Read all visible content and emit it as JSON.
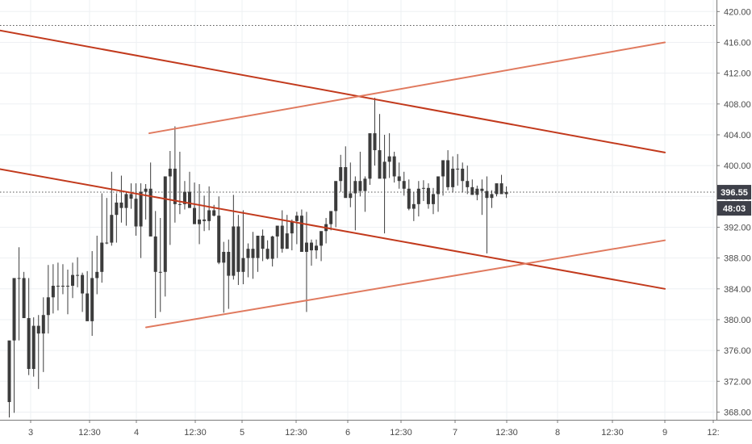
{
  "chart_data": {
    "type": "candlestick",
    "ylim": [
      367.0,
      421.5
    ],
    "grid": true,
    "y_ticks": [
      368,
      372,
      376,
      380,
      384,
      388,
      392,
      396,
      400,
      404,
      408,
      412,
      416,
      420
    ],
    "y_tick_labels": [
      "368.00",
      "372.00",
      "376.00",
      "380.00",
      "384.00",
      "388.00",
      "392.00",
      "396.00",
      "400.00",
      "404.00",
      "408.00",
      "412.00",
      "416.00",
      "420.00"
    ],
    "x_labels": [
      "3",
      "12:30",
      "4",
      "12:30",
      "5",
      "12:30",
      "6",
      "12:30",
      "7",
      "12:30",
      "8",
      "12:30",
      "9",
      "12:"
    ],
    "candles": {
      "open": [
        369.3,
        377.3,
        385.4,
        385.4,
        380.2,
        373.6,
        379.2,
        378.2,
        380.6,
        382.9,
        384.4,
        384.4,
        384.4,
        384.4,
        385.8,
        385.8,
        383.4,
        379.8,
        385.4,
        386.2,
        390.0,
        390.0,
        393.6,
        395.2,
        394.5,
        396.3,
        395.7,
        392.1,
        396.6,
        397.0,
        390.8,
        386.2,
        386.2,
        398.6,
        399.6,
        395.0,
        395.0,
        396.6,
        394.5,
        392.4,
        393.0,
        392.8,
        394.2,
        393.5,
        387.4,
        388.8,
        385.7,
        392.1,
        386.2,
        388.0,
        389.2,
        388.0,
        390.9,
        389.2,
        387.9,
        390.8,
        392.2,
        389.2,
        391.2,
        392.8,
        393.5,
        388.8,
        390.0,
        389.0,
        389.6,
        391.5,
        392.4,
        394.1,
        398.0,
        399.8,
        395.8,
        396.4,
        398.0,
        396.7,
        398.3,
        404.2,
        402.0,
        398.3,
        400.5,
        401.2,
        398.6,
        398.0,
        397.0,
        394.4,
        395.0,
        397.0,
        397.1,
        395.0,
        396.3,
        398.6,
        400.7,
        397.2,
        399.6,
        399.6,
        398.0,
        397.2,
        396.2,
        397.0,
        396.7,
        395.8,
        396.3,
        397.7,
        396.3
      ],
      "high": [
        372.3,
        383.1,
        389.4,
        386.2,
        385.4,
        380.3,
        380.6,
        382.9,
        387.1,
        387.2,
        387.4,
        387.2,
        386.5,
        387.4,
        388.1,
        386.1,
        386.3,
        388.9,
        390.9,
        396.4,
        395.8,
        399.2,
        396.4,
        398.7,
        396.6,
        397.7,
        397.7,
        397.7,
        397.6,
        400.4,
        394.1,
        393.2,
        394.9,
        401.9,
        405.1,
        401.8,
        398.0,
        399.2,
        397.8,
        397.6,
        396.1,
        397.3,
        394.9,
        396.0,
        390.1,
        390.4,
        396.2,
        393.6,
        394.2,
        389.9,
        391.4,
        390.1,
        391.7,
        390.3,
        390.9,
        391.6,
        394.2,
        393.6,
        393.0,
        394.0,
        394.3,
        394.0,
        390.4,
        390.4,
        390.9,
        393.2,
        393.6,
        397.1,
        401.4,
        402.5,
        400.4,
        398.6,
        401.8,
        398.6,
        403.7,
        408.8,
        406.7,
        404.0,
        404.2,
        401.8,
        400.4,
        399.2,
        398.2,
        396.6,
        398.0,
        398.1,
        397.7,
        397.1,
        397.9,
        400.4,
        402.0,
        401.2,
        401.5,
        400.4,
        400.0,
        398.2,
        397.4,
        398.2,
        398.6,
        396.8,
        397.4,
        398.8,
        397.3
      ],
      "low": [
        367.3,
        367.9,
        377.3,
        381.8,
        372.8,
        372.6,
        371.0,
        373.2,
        378.2,
        380.8,
        381.2,
        383.3,
        380.7,
        382.8,
        384.2,
        381.0,
        380.4,
        377.9,
        383.3,
        384.8,
        389.8,
        389.6,
        390.0,
        392.6,
        392.2,
        394.4,
        390.9,
        388.0,
        393.0,
        392.5,
        380.2,
        381.0,
        383.0,
        389.7,
        392.6,
        393.7,
        394.3,
        394.7,
        392.5,
        389.8,
        391.5,
        391.6,
        393.4,
        387.2,
        380.9,
        381.4,
        385.2,
        384.5,
        384.6,
        385.5,
        385.3,
        386.2,
        387.6,
        387.8,
        386.9,
        388.0,
        388.7,
        389.2,
        389.0,
        389.8,
        390.4,
        381.0,
        387.0,
        387.9,
        387.6,
        389.9,
        391.6,
        392.0,
        396.6,
        398.0,
        394.6,
        391.6,
        396.0,
        394.0,
        397.5,
        400.0,
        398.5,
        391.2,
        398.4,
        397.8,
        397.0,
        396.1,
        394.2,
        392.8,
        393.4,
        395.4,
        394.4,
        393.7,
        394.0,
        396.1,
        396.8,
        396.5,
        397.4,
        396.5,
        396.3,
        396.2,
        395.5,
        393.6,
        388.6,
        394.5,
        396.0,
        396.4,
        395.8
      ],
      "close": [
        377.3,
        385.4,
        385.4,
        380.2,
        373.6,
        379.2,
        378.2,
        380.6,
        382.9,
        384.4,
        384.4,
        384.4,
        384.4,
        385.8,
        385.8,
        383.4,
        379.8,
        385.4,
        386.2,
        390.0,
        390.0,
        393.6,
        395.2,
        394.5,
        396.3,
        395.7,
        392.1,
        396.6,
        397.0,
        390.8,
        386.2,
        386.2,
        398.6,
        399.6,
        395.0,
        395.0,
        396.6,
        394.5,
        392.4,
        393.0,
        392.8,
        394.2,
        393.5,
        387.4,
        388.8,
        385.7,
        392.1,
        386.2,
        388.0,
        389.2,
        388.0,
        390.9,
        389.2,
        387.9,
        390.8,
        392.2,
        389.2,
        391.2,
        392.8,
        393.5,
        388.8,
        390.0,
        389.0,
        389.6,
        391.5,
        392.4,
        394.1,
        398.0,
        399.8,
        395.8,
        396.4,
        398.0,
        396.7,
        398.3,
        404.2,
        402.0,
        398.3,
        400.5,
        401.2,
        398.6,
        398.0,
        397.0,
        394.4,
        395.0,
        397.0,
        397.1,
        395.0,
        396.3,
        398.6,
        400.7,
        397.2,
        399.6,
        399.6,
        398.0,
        397.2,
        396.2,
        397.0,
        396.7,
        395.8,
        396.3,
        397.7,
        396.3,
        396.55
      ]
    },
    "trendlines": [
      {
        "color": "#c23a1d",
        "points": [
          [
            -3,
            417.6
          ],
          [
            824,
            401.7
          ]
        ]
      },
      {
        "color": "#c23a1d",
        "points": [
          [
            -3,
            399.6
          ],
          [
            824,
            384.0
          ]
        ]
      },
      {
        "color": "#e07a5f",
        "points": [
          [
            185,
            404.2
          ],
          [
            824,
            416.0
          ]
        ]
      },
      {
        "color": "#e07a5f",
        "points": [
          [
            181,
            379.0
          ],
          [
            824,
            390.3
          ]
        ]
      }
    ],
    "reference_lines": [
      {
        "value": 418.2,
        "style": "dotted",
        "color": "#555555"
      },
      {
        "value": 396.55,
        "style": "dotted",
        "color": "#555555"
      }
    ],
    "price_label": "396.55",
    "timer_label": "48:03"
  },
  "colors": {
    "candle": "#3c3c3c",
    "grid": "#eef0f3",
    "axis_line": "#7a7a7a",
    "badge": "#3e4049"
  }
}
